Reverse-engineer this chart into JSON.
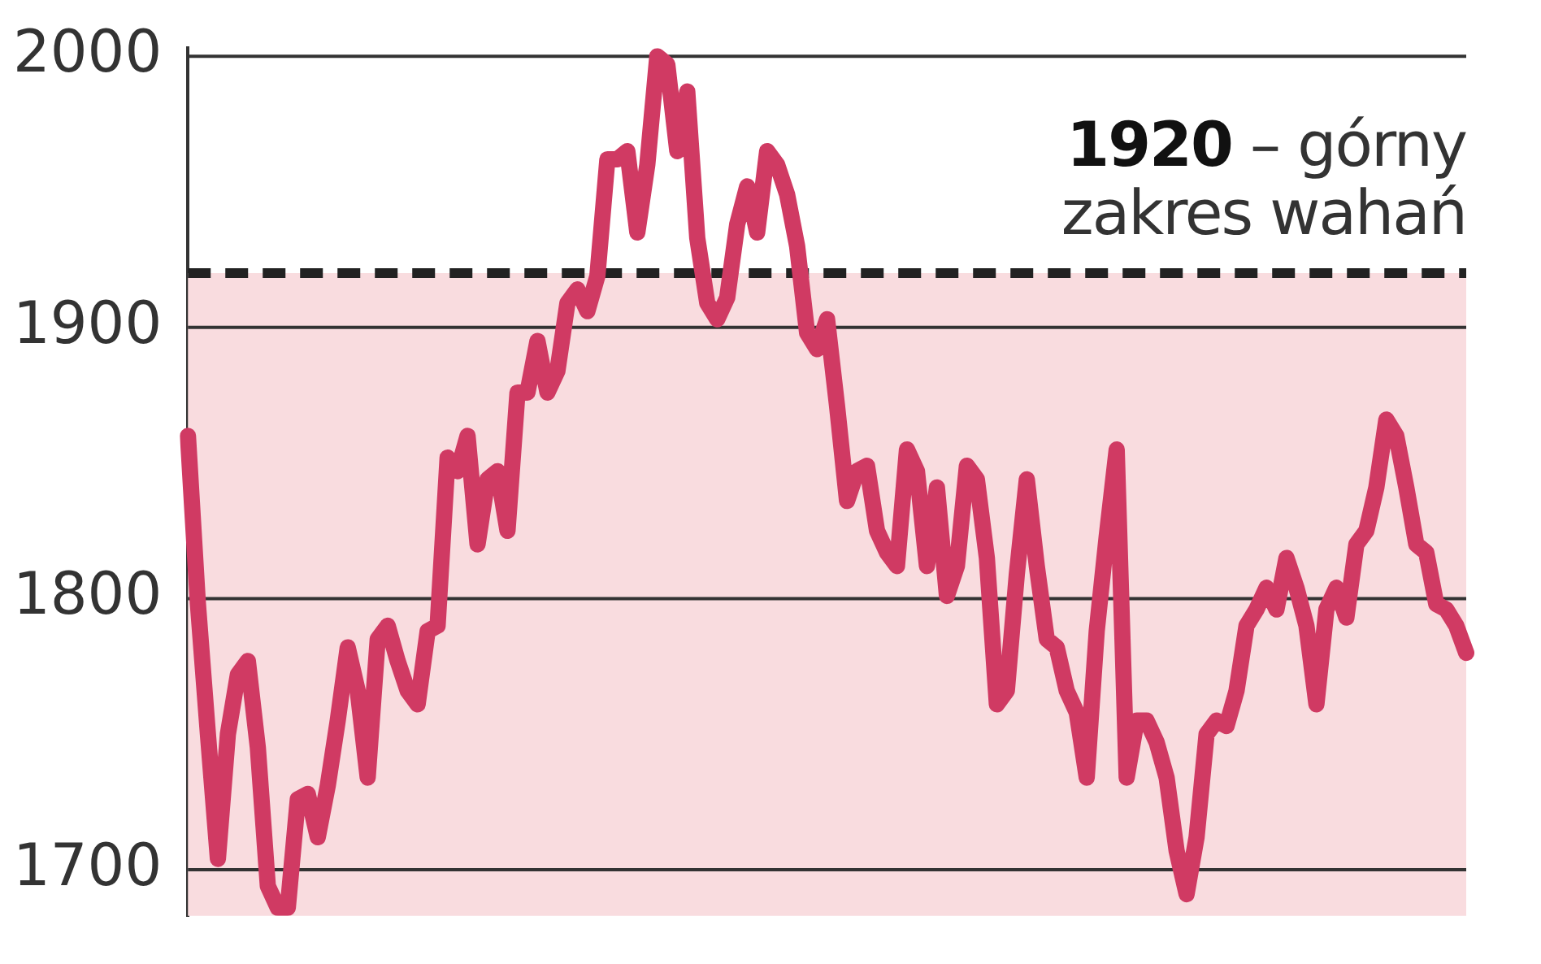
{
  "chart_data": {
    "type": "line",
    "categories": [
      null,
      null,
      null,
      null,
      null,
      null,
      null,
      null,
      null,
      null,
      null,
      null,
      null,
      null,
      null,
      null,
      null,
      null,
      null,
      null,
      null,
      null,
      null,
      null,
      null,
      null,
      null,
      null,
      null,
      null,
      null,
      null,
      null,
      null,
      null,
      null,
      null,
      null,
      null,
      null,
      null,
      null,
      null,
      null,
      null,
      null,
      null,
      null,
      null,
      null,
      null,
      null,
      null,
      null,
      null,
      null,
      null,
      null,
      null,
      null,
      null,
      null,
      null,
      null,
      null,
      null,
      null,
      null,
      null,
      null,
      null,
      null,
      null,
      null,
      null,
      null,
      null,
      null,
      null,
      null,
      null,
      null,
      null,
      null,
      null,
      null,
      null,
      null,
      null,
      null,
      null,
      null,
      null,
      null,
      null,
      null,
      null,
      null,
      null,
      null,
      null,
      null,
      null,
      null,
      null,
      null,
      null,
      null,
      null,
      null,
      null,
      null,
      null,
      null,
      null,
      null,
      null,
      null,
      null,
      null,
      null,
      null,
      null,
      null,
      null,
      null,
      null,
      null,
      null
    ],
    "series": [
      {
        "color": "#d03a63",
        "values": [
          1860,
          1798,
          1750,
          1704,
          1750,
          1772,
          1777,
          1745,
          1694,
          1686,
          1686,
          1726,
          1728,
          1712,
          1731,
          1755,
          1782,
          1766,
          1734,
          1785,
          1790,
          1777,
          1766,
          1761,
          1788,
          1790,
          1852,
          1847,
          1860,
          1820,
          1844,
          1847,
          1825,
          1876,
          1876,
          1895,
          1876,
          1884,
          1909,
          1914,
          1906,
          1919,
          1962,
          1962,
          1965,
          1935,
          1960,
          2000,
          1997,
          1965,
          1987,
          1933,
          1909,
          1903,
          1911,
          1938,
          1952,
          1935,
          1965,
          1960,
          1949,
          1930,
          1898,
          1892,
          1903,
          1871,
          1836,
          1847,
          1849,
          1825,
          1817,
          1812,
          1855,
          1847,
          1812,
          1841,
          1801,
          1812,
          1849,
          1844,
          1815,
          1761,
          1766,
          1809,
          1844,
          1812,
          1785,
          1782,
          1766,
          1758,
          1734,
          1788,
          1823,
          1855,
          1734,
          1755,
          1755,
          1747,
          1734,
          1707,
          1691,
          1712,
          1750,
          1755,
          1753,
          1766,
          1790,
          1796,
          1804,
          1796,
          1815,
          1804,
          1790,
          1761,
          1796,
          1804,
          1793,
          1820,
          1825,
          1841,
          1866,
          1860,
          1841,
          1820,
          1817,
          1798,
          1796,
          1790,
          1780
        ]
      }
    ],
    "ylim": [
      1683,
      2003
    ],
    "yticks": [
      1700,
      1800,
      1900,
      2000
    ],
    "grid": "y",
    "legend": false,
    "tick_labels": "y",
    "line_style": "solid",
    "marker": "none",
    "bands": [
      {
        "axis": "y",
        "from": 1683,
        "to": 1920,
        "color": "#f9dcdf"
      }
    ],
    "ref_lines": [
      {
        "axis": "y",
        "value": 1920,
        "label": "1920 – górny zakres wahań",
        "color": "#222222",
        "line_style": "dashed"
      }
    ]
  }
}
